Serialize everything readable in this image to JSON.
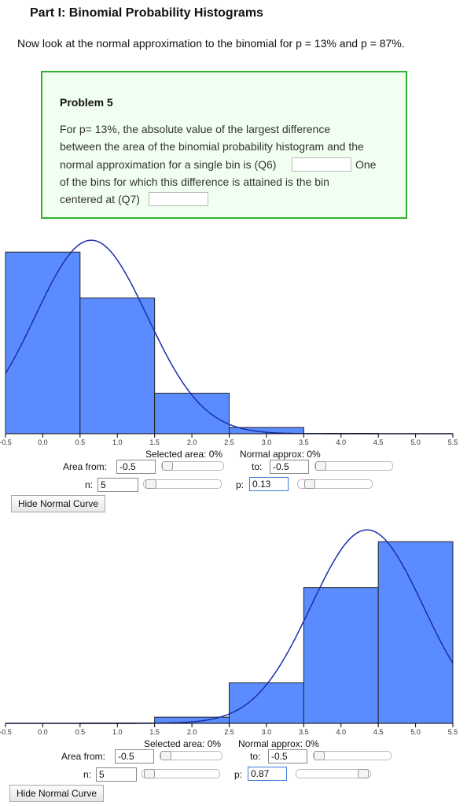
{
  "header": {
    "title": "Part I: Binomial Probability Histograms",
    "intro": "Now look at the normal approximation to the binomial for p = 13% and p = 87%."
  },
  "problem": {
    "title": "Problem 5",
    "line1": "For p= 13%, the absolute value of the largest difference",
    "line2": "between the area of the binomial probability histogram and the",
    "line3": "normal approximation for a single bin is (Q6)",
    "line3b": "One",
    "line4": "of the bins for which this difference is attained is the bin",
    "line5": "centered at (Q7)",
    "q6_value": "",
    "q7_value": ""
  },
  "panels": [
    {
      "selected_area": "Selected area: 0%",
      "normal_approx": "Normal approx: 0%",
      "area_from_label": "Area from:",
      "area_from_value": "-0.5",
      "to_label": "to:",
      "to_value": "-0.5",
      "n_label": "n:",
      "n_value": "5",
      "p_label": "p:",
      "p_value": "0.13",
      "button_label": "Hide Normal Curve",
      "p_slider_fraction": 0.13
    },
    {
      "selected_area": "Selected area: 0%",
      "normal_approx": "Normal approx: 0%",
      "area_from_label": "Area from:",
      "area_from_value": "-0.5",
      "to_label": "to:",
      "to_value": "-0.5",
      "n_label": "n:",
      "n_value": "5",
      "p_label": "p:",
      "p_value": "0.87",
      "button_label": "Hide Normal Curve",
      "p_slider_fraction": 0.87
    }
  ],
  "chart_data": [
    {
      "type": "bar",
      "x": [
        0,
        1,
        2,
        3,
        4,
        5
      ],
      "values": [
        0.498,
        0.372,
        0.111,
        0.017,
        0.001,
        0.0
      ],
      "bin_width": 1,
      "normal_curve": {
        "mean": 0.65,
        "sd": 0.752
      },
      "xlim": [
        -0.5,
        5.5
      ],
      "tick_labels": [
        "-0.5",
        "0.0",
        "0.5",
        "1.0",
        "1.5",
        "2.0",
        "2.5",
        "3.0",
        "3.5",
        "4.0",
        "4.5",
        "5.0",
        "5.5"
      ],
      "bar_color": "#5b8cff",
      "curve_color": "#1a2fa8"
    },
    {
      "type": "bar",
      "x": [
        0,
        1,
        2,
        3,
        4,
        5
      ],
      "values": [
        0.0,
        0.001,
        0.017,
        0.111,
        0.372,
        0.498
      ],
      "bin_width": 1,
      "normal_curve": {
        "mean": 4.35,
        "sd": 0.752
      },
      "xlim": [
        -0.5,
        5.5
      ],
      "tick_labels": [
        "-0.5",
        "0.0",
        "0.5",
        "1.0",
        "1.5",
        "2.0",
        "2.5",
        "3.0",
        "3.5",
        "4.0",
        "4.5",
        "5.0",
        "5.5"
      ],
      "bar_color": "#5b8cff",
      "curve_color": "#1a2fa8"
    }
  ]
}
